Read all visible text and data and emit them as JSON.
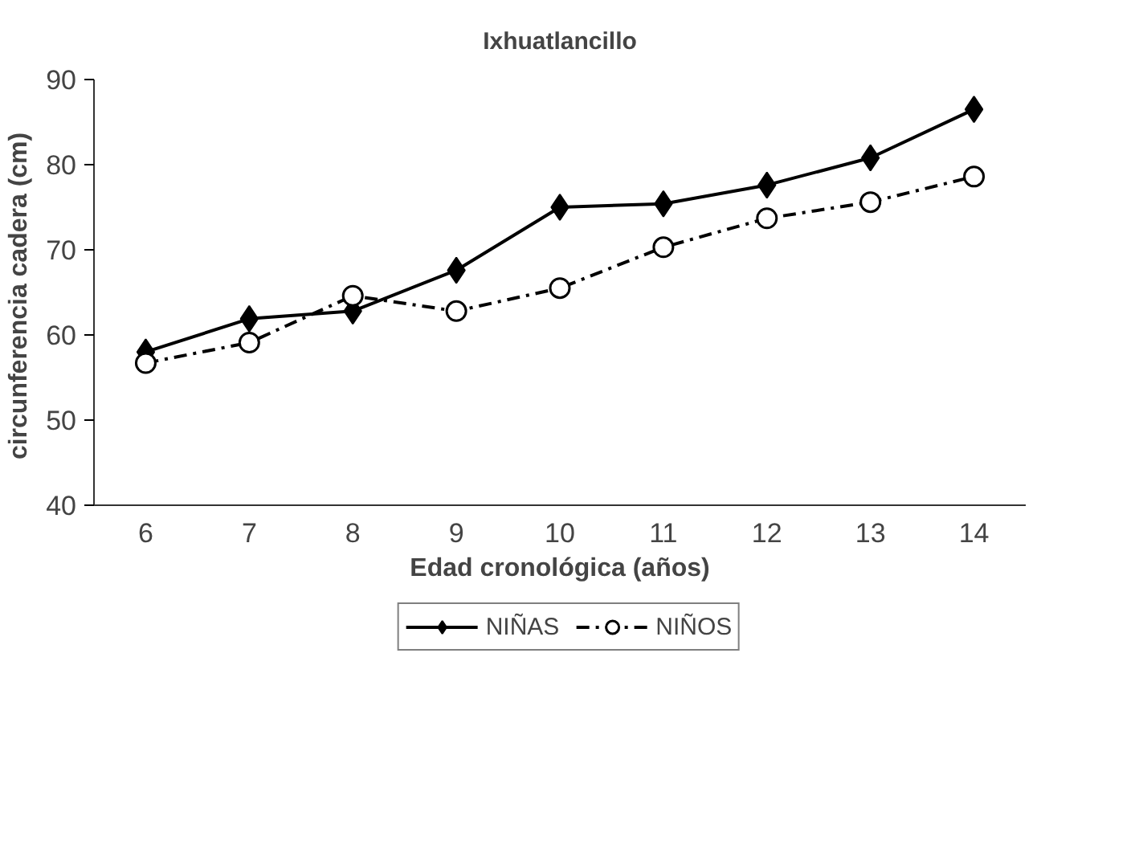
{
  "chart_data": {
    "type": "line",
    "title": "Ixhuatlancillo",
    "xlabel": "Edad cronológica (años)",
    "ylabel": "circunferencia  cadera (cm)",
    "categories": [
      "6",
      "7",
      "8",
      "9",
      "10",
      "11",
      "12",
      "13",
      "14"
    ],
    "ylim": [
      40,
      90
    ],
    "yticks": [
      40,
      50,
      60,
      70,
      80,
      90
    ],
    "grid": false,
    "legend": "bottom",
    "series": [
      {
        "name": "NIÑAS",
        "color": "#000000",
        "marker": "diamond",
        "line_style": "solid",
        "values": [
          58.0,
          61.9,
          62.8,
          67.6,
          75.0,
          75.4,
          77.6,
          80.8,
          86.5
        ]
      },
      {
        "name": "NIÑOS",
        "color": "#000000",
        "marker": "circle",
        "line_style": "dashed",
        "values": [
          56.7,
          59.1,
          64.6,
          62.8,
          65.5,
          70.3,
          73.7,
          75.6,
          78.6
        ]
      }
    ]
  }
}
